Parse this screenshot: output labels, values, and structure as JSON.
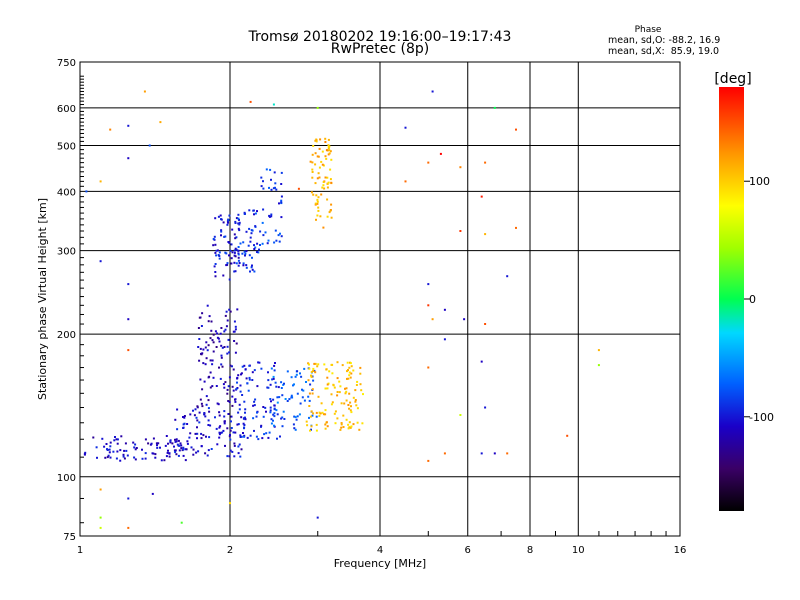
{
  "chart_data": {
    "type": "scatter",
    "title": "Tromsø 20180202 19:16:00–19:17:43",
    "subtitle": "RwPretec (8p)",
    "xlabel": "Frequency [MHz]",
    "ylabel": "Stationary phase Virtual Height [km]",
    "x_scale": "log",
    "y_scale": "log",
    "xlim": [
      1,
      16
    ],
    "ylim": [
      75,
      750
    ],
    "x_ticks": [
      1,
      2,
      4,
      6,
      8,
      10,
      16
    ],
    "y_ticks": [
      75,
      100,
      200,
      300,
      400,
      500,
      600,
      750
    ],
    "grid": true,
    "colorbar": {
      "label": "[deg]",
      "range": [
        -180,
        180
      ],
      "ticks": [
        -100,
        0,
        100
      ]
    },
    "phase_stats": {
      "title": "Phase",
      "line_o": "mean, sd,O: -88.2, 16.9",
      "line_x": "mean, sd,X:  85.9, 19.0"
    },
    "clusters": [
      {
        "x": [
          1.02,
          1.65
        ],
        "y": [
          108,
          122
        ],
        "phase": -110,
        "count": 90
      },
      {
        "x": [
          1.55,
          2.15
        ],
        "y": [
          110,
          140
        ],
        "phase": -105,
        "count": 120
      },
      {
        "x": [
          1.72,
          2.08
        ],
        "y": [
          140,
          230
        ],
        "phase": -115,
        "count": 110
      },
      {
        "x": [
          1.85,
          2.1
        ],
        "y": [
          260,
          360
        ],
        "phase": -100,
        "count": 70
      },
      {
        "x": [
          2.05,
          2.55
        ],
        "y": [
          120,
          175
        ],
        "phase": -95,
        "count": 90
      },
      {
        "x": [
          2.05,
          2.3
        ],
        "y": [
          270,
          370
        ],
        "phase": -90,
        "count": 60
      },
      {
        "x": [
          2.3,
          2.55
        ],
        "y": [
          310,
          450
        ],
        "phase": -85,
        "count": 40
      },
      {
        "x": [
          2.4,
          3.0
        ],
        "y": [
          125,
          170
        ],
        "phase": -75,
        "count": 70
      },
      {
        "x": [
          2.85,
          3.7
        ],
        "y": [
          125,
          175
        ],
        "phase": 105,
        "count": 130
      },
      {
        "x": [
          2.9,
          3.2
        ],
        "y": [
          335,
          520
        ],
        "phase": 110,
        "count": 80
      }
    ],
    "scattered": [
      {
        "x": 1.03,
        "y": 400,
        "phase": -80
      },
      {
        "x": 1.1,
        "y": 420,
        "phase": 110
      },
      {
        "x": 1.1,
        "y": 285,
        "phase": -100
      },
      {
        "x": 1.15,
        "y": 540,
        "phase": 130
      },
      {
        "x": 1.25,
        "y": 550,
        "phase": -100
      },
      {
        "x": 1.25,
        "y": 470,
        "phase": -110
      },
      {
        "x": 1.25,
        "y": 255,
        "phase": -100
      },
      {
        "x": 1.25,
        "y": 215,
        "phase": -110
      },
      {
        "x": 1.25,
        "y": 185,
        "phase": 150
      },
      {
        "x": 1.35,
        "y": 650,
        "phase": 120
      },
      {
        "x": 1.38,
        "y": 500,
        "phase": -80
      },
      {
        "x": 1.45,
        "y": 560,
        "phase": 115
      },
      {
        "x": 1.3,
        "y": 115,
        "phase": -120
      },
      {
        "x": 1.1,
        "y": 94,
        "phase": 120
      },
      {
        "x": 1.1,
        "y": 82,
        "phase": 40
      },
      {
        "x": 1.25,
        "y": 90,
        "phase": -100
      },
      {
        "x": 1.4,
        "y": 92,
        "phase": -110
      },
      {
        "x": 1.6,
        "y": 80,
        "phase": 20
      },
      {
        "x": 1.25,
        "y": 78,
        "phase": 140
      },
      {
        "x": 1.1,
        "y": 78,
        "phase": 60
      },
      {
        "x": 2.0,
        "y": 88,
        "phase": 95
      },
      {
        "x": 2.2,
        "y": 618,
        "phase": 150
      },
      {
        "x": 2.45,
        "y": 610,
        "phase": -20
      },
      {
        "x": 2.75,
        "y": 405,
        "phase": 150
      },
      {
        "x": 3.0,
        "y": 82,
        "phase": -100
      },
      {
        "x": 3.0,
        "y": 600,
        "phase": 40
      },
      {
        "x": 4.5,
        "y": 545,
        "phase": -100
      },
      {
        "x": 4.5,
        "y": 420,
        "phase": 140
      },
      {
        "x": 5.0,
        "y": 460,
        "phase": 140
      },
      {
        "x": 5.1,
        "y": 650,
        "phase": -100
      },
      {
        "x": 5.3,
        "y": 480,
        "phase": 180
      },
      {
        "x": 5.0,
        "y": 255,
        "phase": -100
      },
      {
        "x": 5.0,
        "y": 230,
        "phase": 160
      },
      {
        "x": 5.1,
        "y": 215,
        "phase": 120
      },
      {
        "x": 5.4,
        "y": 225,
        "phase": -110
      },
      {
        "x": 5.0,
        "y": 170,
        "phase": 140
      },
      {
        "x": 5.4,
        "y": 195,
        "phase": -100
      },
      {
        "x": 5.8,
        "y": 450,
        "phase": 130
      },
      {
        "x": 5.8,
        "y": 330,
        "phase": 160
      },
      {
        "x": 5.9,
        "y": 215,
        "phase": -110
      },
      {
        "x": 5.8,
        "y": 135,
        "phase": 60
      },
      {
        "x": 5.4,
        "y": 112,
        "phase": 140
      },
      {
        "x": 5.0,
        "y": 108,
        "phase": 140
      },
      {
        "x": 6.5,
        "y": 460,
        "phase": 140
      },
      {
        "x": 6.4,
        "y": 390,
        "phase": 170
      },
      {
        "x": 6.5,
        "y": 325,
        "phase": 110
      },
      {
        "x": 6.5,
        "y": 210,
        "phase": 150
      },
      {
        "x": 6.4,
        "y": 175,
        "phase": -110
      },
      {
        "x": 6.5,
        "y": 140,
        "phase": -100
      },
      {
        "x": 6.4,
        "y": 112,
        "phase": -100
      },
      {
        "x": 6.8,
        "y": 112,
        "phase": -110
      },
      {
        "x": 7.2,
        "y": 265,
        "phase": -100
      },
      {
        "x": 7.2,
        "y": 112,
        "phase": 140
      },
      {
        "x": 7.5,
        "y": 540,
        "phase": 150
      },
      {
        "x": 7.5,
        "y": 335,
        "phase": 140
      },
      {
        "x": 6.8,
        "y": 600,
        "phase": 0
      },
      {
        "x": 9.5,
        "y": 122,
        "phase": 150
      },
      {
        "x": 11.0,
        "y": 185,
        "phase": 110
      },
      {
        "x": 11.0,
        "y": 172,
        "phase": 40
      }
    ]
  }
}
